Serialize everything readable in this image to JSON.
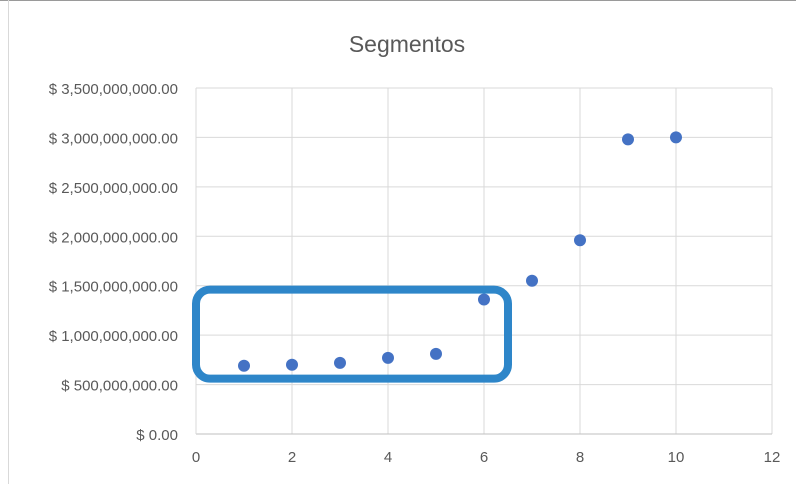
{
  "chart_data": {
    "type": "scatter",
    "title": "Segmentos",
    "xlabel": "",
    "ylabel": "",
    "xlim": [
      0,
      12
    ],
    "ylim": [
      0,
      3500000000
    ],
    "x_ticks": [
      "0",
      "2",
      "4",
      "6",
      "8",
      "10",
      "12"
    ],
    "y_ticks": [
      "$ 0.00",
      "$ 500,000,000.00",
      "$ 1,000,000,000.00",
      "$ 1,500,000,000.00",
      "$ 2,000,000,000.00",
      "$ 2,500,000,000.00",
      "$ 3,000,000,000.00",
      "$ 3,500,000,000.00"
    ],
    "grid": true,
    "legend": "none",
    "marker_color": "#4472C4",
    "highlight_color": "#2E86C9",
    "highlight_range": {
      "x": [
        0,
        6.5
      ],
      "y": [
        560000000,
        1460000000
      ]
    },
    "points": [
      {
        "x": 1,
        "y": 690000000
      },
      {
        "x": 2,
        "y": 700000000
      },
      {
        "x": 3,
        "y": 720000000
      },
      {
        "x": 4,
        "y": 770000000
      },
      {
        "x": 5,
        "y": 810000000
      },
      {
        "x": 6,
        "y": 1360000000
      },
      {
        "x": 7,
        "y": 1550000000
      },
      {
        "x": 8,
        "y": 1960000000
      },
      {
        "x": 9,
        "y": 2980000000
      },
      {
        "x": 10,
        "y": 3000000000
      }
    ]
  }
}
